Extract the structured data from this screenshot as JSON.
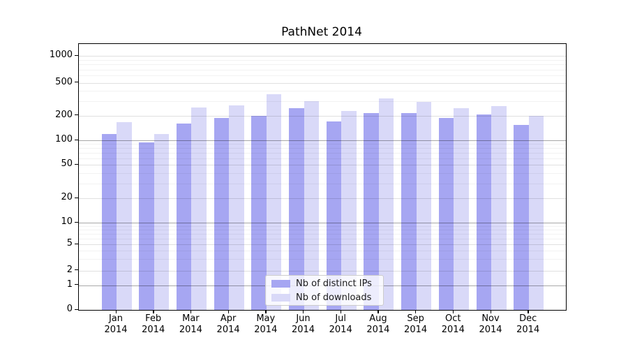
{
  "title": "PathNet 2014",
  "chart_data": {
    "type": "bar",
    "title": "PathNet 2014",
    "categories": [
      "Jan 2014",
      "Feb 2014",
      "Mar 2014",
      "Apr 2014",
      "May 2014",
      "Jun 2014",
      "Jul 2014",
      "Aug 2014",
      "Sep 2014",
      "Oct 2014",
      "Nov 2014",
      "Dec 2014"
    ],
    "series": [
      {
        "name": "Nb of distinct IPs",
        "color": "#a6a6f2",
        "values": [
          120,
          95,
          160,
          185,
          200,
          245,
          170,
          215,
          215,
          185,
          205,
          155
        ]
      },
      {
        "name": "Nb of downloads",
        "color": "#d9d9f8",
        "values": [
          165,
          120,
          250,
          265,
          365,
          300,
          225,
          320,
          295,
          245,
          260,
          200
        ]
      }
    ],
    "y_axis": {
      "scale": "symlog",
      "ticks": [
        0,
        1,
        2,
        5,
        10,
        20,
        50,
        100,
        200,
        500,
        1000
      ],
      "range": [
        0,
        1200
      ]
    },
    "legend": {
      "position": "lower center",
      "labels": [
        "Nb of distinct IPs",
        "Nb of downloads"
      ]
    },
    "grid": true
  }
}
